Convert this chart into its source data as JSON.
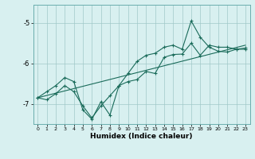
{
  "xlabel": "Humidex (Indice chaleur)",
  "bg_color": "#d8f0f0",
  "line_color": "#1a6b5a",
  "grid_color": "#a0c8c8",
  "xlim": [
    -0.5,
    23.5
  ],
  "ylim": [
    -7.5,
    -4.55
  ],
  "yticks": [
    -7,
    -6,
    -5
  ],
  "xticks": [
    0,
    1,
    2,
    3,
    4,
    5,
    6,
    7,
    8,
    9,
    10,
    11,
    12,
    13,
    14,
    15,
    16,
    17,
    18,
    19,
    20,
    21,
    22,
    23
  ],
  "series1_x": [
    0,
    1,
    2,
    3,
    4,
    5,
    6,
    7,
    8,
    9,
    10,
    11,
    12,
    13,
    14,
    15,
    16,
    17,
    18,
    19,
    20,
    21,
    22,
    23
  ],
  "series1_y": [
    -6.85,
    -6.9,
    -6.75,
    -6.55,
    -6.7,
    -7.05,
    -7.35,
    -7.05,
    -6.8,
    -6.55,
    -6.45,
    -6.4,
    -6.2,
    -6.25,
    -5.85,
    -5.78,
    -5.77,
    -5.5,
    -5.8,
    -5.55,
    -5.6,
    -5.6,
    -5.65,
    -5.65
  ],
  "series2_x": [
    0,
    1,
    2,
    3,
    4,
    5,
    6,
    7,
    8,
    9,
    10,
    11,
    12,
    13,
    14,
    15,
    16,
    17,
    18,
    19,
    20,
    21,
    22,
    23
  ],
  "series2_y": [
    -6.85,
    -6.7,
    -6.55,
    -6.35,
    -6.45,
    -7.15,
    -7.38,
    -6.95,
    -7.28,
    -6.55,
    -6.25,
    -5.95,
    -5.8,
    -5.75,
    -5.6,
    -5.55,
    -5.65,
    -4.95,
    -5.35,
    -5.6,
    -5.7,
    -5.72,
    -5.65,
    -5.62
  ],
  "series3_x": [
    0,
    23
  ],
  "series3_y": [
    -6.85,
    -5.55
  ]
}
